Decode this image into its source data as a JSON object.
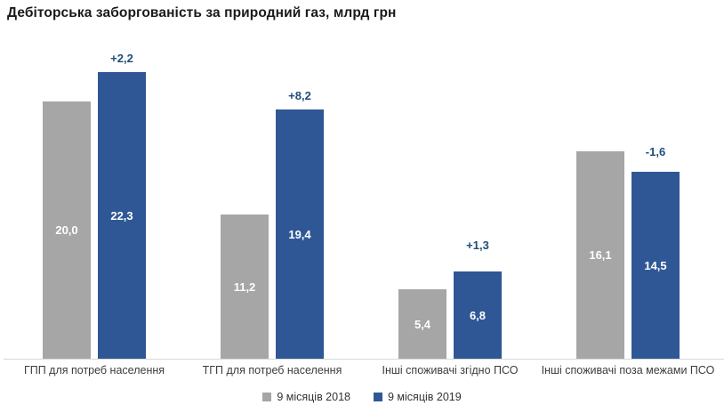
{
  "chart_data": {
    "type": "bar",
    "title": "Дебіторська заборгованість за природний газ, млрд грн",
    "categories": [
      "ГПП для потреб населення",
      "ТГП для потреб населення",
      "Інші споживачі згідно ПСО",
      "Інші споживачі поза межами ПСО"
    ],
    "series": [
      {
        "name": "9 місяців 2018",
        "color": "#a6a6a6",
        "values": [
          20.0,
          11.2,
          5.4,
          16.1
        ],
        "labels": [
          "20,0",
          "11,2",
          "5,4",
          "16,1"
        ]
      },
      {
        "name": "9 місяців 2019",
        "color": "#2f5795",
        "values": [
          22.3,
          19.4,
          6.8,
          14.5
        ],
        "labels": [
          "22,3",
          "19,4",
          "6,8",
          "14,5"
        ]
      }
    ],
    "delta_labels": [
      "+2,2",
      "+8,2",
      "+1,3",
      "-1,6"
    ],
    "delta_color": "#1f4e79",
    "ylim": [
      0,
      24
    ],
    "grid": false,
    "y_axis_visible": false,
    "x_axis_line_color": "#d9d9d9",
    "value_label_color": "#ffffff",
    "legend_position": "bottom"
  },
  "legend": {
    "items": [
      {
        "label": "9 місяців 2018",
        "color": "#a6a6a6"
      },
      {
        "label": "9 місяців 2019",
        "color": "#2f5795"
      }
    ]
  }
}
